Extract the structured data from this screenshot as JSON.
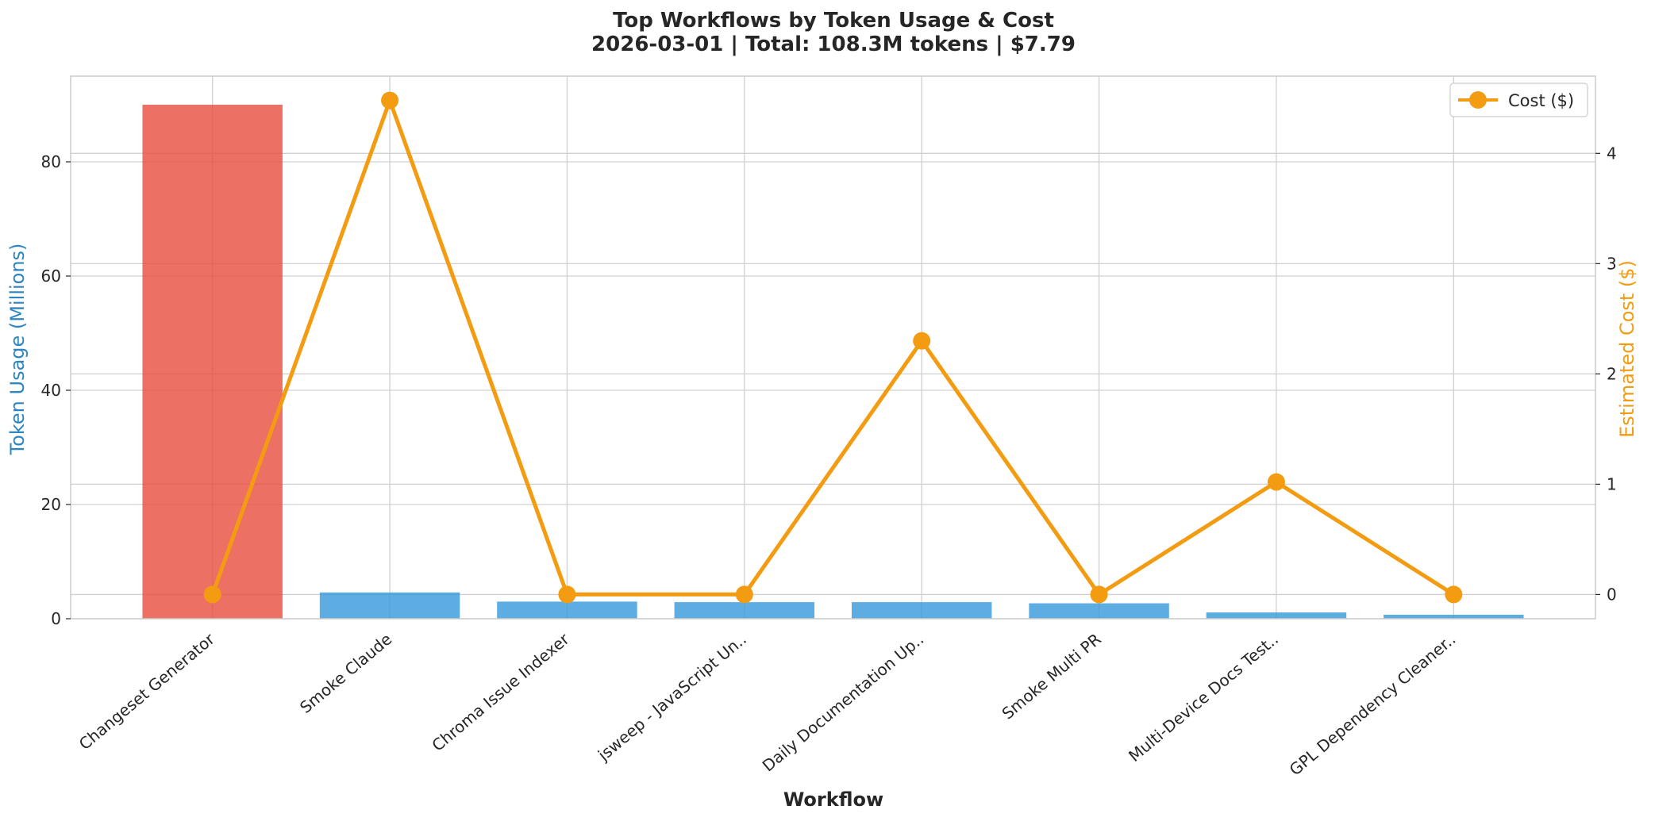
{
  "chart_data": {
    "type": "bar",
    "title_line1": "Top Workflows by Token Usage & Cost",
    "title_line2": "2026-03-01 | Total: 108.3M tokens | $7.79",
    "xlabel": "Workflow",
    "ylabel_left": "Token Usage (Millions)",
    "ylabel_right": "Estimated Cost ($)",
    "categories": [
      "Changeset Generator",
      "Smoke Claude",
      "Chroma Issue Indexer",
      "jsweep - JavaScript Un..",
      "Daily Documentation Up..",
      "Smoke Multi PR",
      "Multi-Device Docs Test..",
      "GPL Dependency Cleaner.."
    ],
    "series": [
      {
        "axis": "left",
        "kind": "bar",
        "values": [
          90.0,
          4.6,
          3.0,
          2.9,
          2.9,
          2.7,
          1.1,
          0.7
        ],
        "colors": [
          "#e74c3c",
          "#3498db",
          "#3498db",
          "#3498db",
          "#3498db",
          "#3498db",
          "#3498db",
          "#3498db"
        ]
      },
      {
        "axis": "right",
        "kind": "line",
        "name": "Cost ($)",
        "values": [
          0.0,
          4.48,
          0.0,
          0.0,
          2.3,
          0.0,
          1.02,
          0.0
        ],
        "color": "#f39c12"
      }
    ],
    "ylim_left": [
      0,
      95
    ],
    "yticks_left": [
      0,
      20,
      40,
      60,
      80
    ],
    "ylim_right": [
      -0.22,
      4.7
    ],
    "yticks_right": [
      0,
      1,
      2,
      3,
      4
    ],
    "grid": true,
    "legend_position": "top-right",
    "ylabel_left_color": "#2e86c1",
    "ylabel_right_color": "#f39c12"
  }
}
